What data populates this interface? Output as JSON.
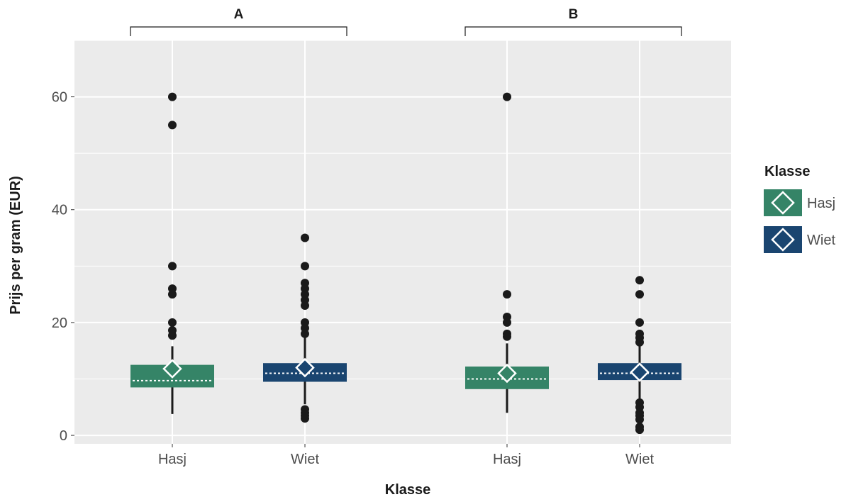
{
  "chart_data": {
    "type": "boxplot",
    "xlabel": "Klasse",
    "ylabel": "Prijs per gram (EUR)",
    "ylim": [
      -1.5,
      70
    ],
    "yticks": [
      0,
      20,
      40,
      60
    ],
    "grid": true,
    "facets": [
      {
        "label": "A",
        "categories": [
          "Hasj",
          "Wiet"
        ],
        "boxes": [
          {
            "category": "Hasj",
            "series": "Hasj",
            "whisker_low": 3.8,
            "q1": 8.5,
            "median": 9.7,
            "q3": 12.5,
            "whisker_high": 15.8,
            "mean": 11.8,
            "outliers": [
              60,
              55,
              30,
              26,
              25,
              20,
              18.6,
              17.7
            ]
          },
          {
            "category": "Wiet",
            "series": "Wiet",
            "whisker_low": 5.5,
            "q1": 9.5,
            "median": 11,
            "q3": 12.8,
            "whisker_high": 17.5,
            "mean": 12,
            "outliers": [
              35,
              30,
              27,
              26,
              25,
              24,
              23,
              20,
              19,
              18,
              4.6,
              4,
              3.5,
              3
            ]
          }
        ]
      },
      {
        "label": "B",
        "categories": [
          "Hasj",
          "Wiet"
        ],
        "boxes": [
          {
            "category": "Hasj",
            "series": "Hasj",
            "whisker_low": 4,
            "q1": 8.2,
            "median": 10,
            "q3": 12.2,
            "whisker_high": 16.3,
            "mean": 11,
            "outliers": [
              60,
              25,
              21,
              20,
              18,
              17.5
            ]
          },
          {
            "category": "Wiet",
            "series": "Wiet",
            "whisker_low": 6.5,
            "q1": 9.8,
            "median": 11,
            "q3": 12.8,
            "whisker_high": 16,
            "mean": 11.2,
            "outliers": [
              27.5,
              25,
              20,
              18,
              17.3,
              16.5,
              5.8,
              5,
              4,
              3.5,
              2.8,
              1.5,
              1
            ]
          }
        ]
      }
    ],
    "legend": {
      "title": "Klasse",
      "position": "right",
      "entries": [
        {
          "label": "Hasj",
          "color": "#358467"
        },
        {
          "label": "Wiet",
          "color": "#1a4570"
        }
      ]
    }
  },
  "colors": {
    "panel_bg": "#ebebeb",
    "grid": "#ffffff",
    "outlier": "#1a1a1a",
    "whisker": "#1a1a1a"
  }
}
